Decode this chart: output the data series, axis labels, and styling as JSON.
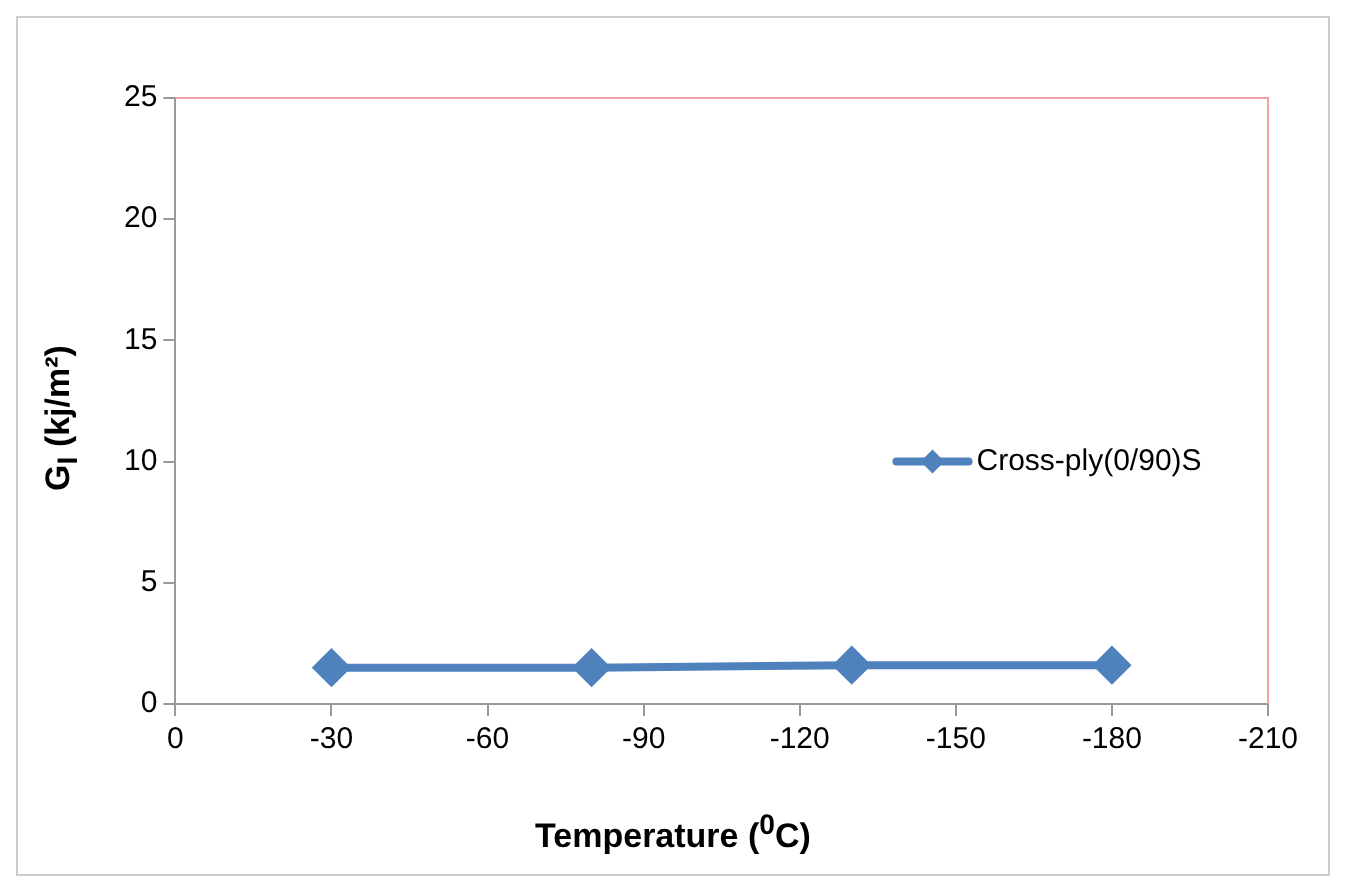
{
  "chart_data": {
    "type": "line",
    "xlabel": "Temperature  ($^{0}$C)",
    "ylabel": "G$_{I}$ (kj/m²)",
    "x": [
      -30,
      -80,
      -130,
      -180
    ],
    "series": [
      {
        "name": "Cross-ply(0/90)S",
        "color": "#4f81bd",
        "values": [
          1.5,
          1.5,
          1.6,
          1.6
        ]
      }
    ],
    "xlim": [
      0,
      -210
    ],
    "xticks": [
      0,
      -30,
      -60,
      -90,
      -120,
      -150,
      -180,
      -210
    ],
    "ylim": [
      0,
      25
    ],
    "yticks": [
      0,
      5,
      10,
      15,
      20,
      25
    ],
    "grid": false,
    "legend": "right",
    "marker": "diamond",
    "line_style": "solid"
  }
}
